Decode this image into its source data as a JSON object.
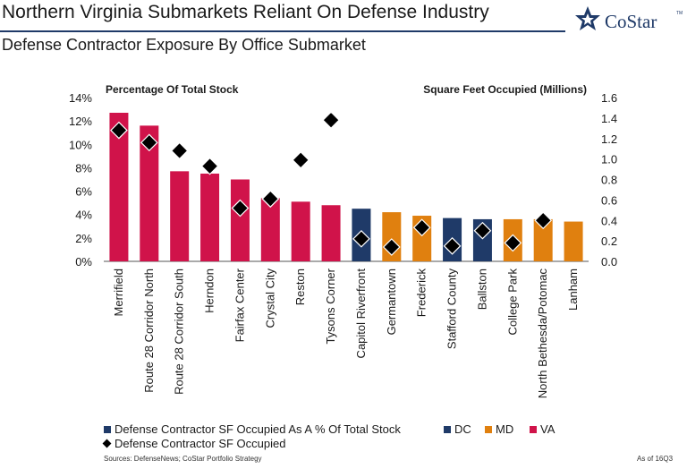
{
  "header": {
    "title": "Northern Virginia Submarkets Reliant On Defense Industry",
    "subtitle": "Defense Contractor Exposure By Office Submarket",
    "logo_text": "CoStar",
    "logo_tm": "TM"
  },
  "colors": {
    "VA": "#d0134a",
    "DC": "#1f3a68",
    "MD": "#e0800f",
    "marker": "#000000",
    "brand": "#1f3a68"
  },
  "chart_data": {
    "type": "bar",
    "title": "",
    "ylabel": "Percentage Of Total Stock",
    "y2label": "Square Feet Occupied (Millions)",
    "ylim": [
      0,
      14
    ],
    "y_ticks": [
      "0%",
      "2%",
      "4%",
      "6%",
      "8%",
      "10%",
      "12%",
      "14%"
    ],
    "y2lim": [
      0,
      1.6
    ],
    "y2_ticks": [
      "0.0",
      "0.2",
      "0.4",
      "0.6",
      "0.8",
      "1.0",
      "1.2",
      "1.4",
      "1.6"
    ],
    "grid": false,
    "categories": [
      "Merrifield",
      "Route 28 Corridor North",
      "Route 28 Corridor South",
      "Herndon",
      "Fairfax Center",
      "Crystal City",
      "Reston",
      "Tysons Corner",
      "Capitol Riverfront",
      "Germantown",
      "Frederick",
      "Stafford County",
      "Ballston",
      "College Park",
      "North Bethesda/Potomac",
      "Lanham"
    ],
    "region": [
      "VA",
      "VA",
      "VA",
      "VA",
      "VA",
      "VA",
      "VA",
      "VA",
      "DC",
      "MD",
      "MD",
      "VA",
      "DC",
      "MD",
      "MD",
      "MD"
    ],
    "series": [
      {
        "name": "Defense Contractor SF Occupied As A % Of Total Stock",
        "axis": "left",
        "kind": "bar",
        "values": [
          12.7,
          11.6,
          7.7,
          7.5,
          7.0,
          5.4,
          5.1,
          4.8,
          4.5,
          4.2,
          3.9,
          3.7,
          3.6,
          3.6,
          3.6,
          3.4
        ]
      },
      {
        "name": "Defense Contractor SF Occupied",
        "axis": "right",
        "kind": "marker",
        "values": [
          1.28,
          1.16,
          1.08,
          0.93,
          0.52,
          0.61,
          0.99,
          1.38,
          0.22,
          0.14,
          0.33,
          0.15,
          0.3,
          0.18,
          0.4,
          null
        ]
      }
    ]
  },
  "legend": {
    "bar_label": "Defense Contractor SF Occupied As A % Of Total Stock",
    "marker_label": "Defense Contractor SF Occupied",
    "dc": "DC",
    "md": "MD",
    "va": "VA"
  },
  "footer": {
    "source": "Sources: DefenseNews; CoStar Portfolio Strategy",
    "as_of": "As of 16Q3"
  }
}
